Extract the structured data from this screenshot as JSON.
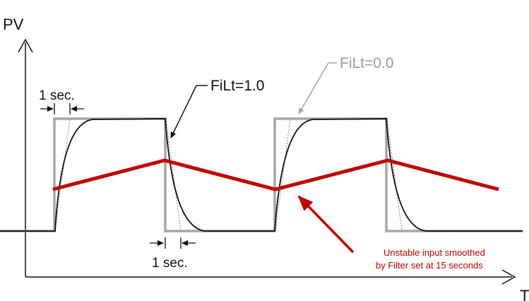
{
  "axes": {
    "y_label": "PV",
    "x_label": "T"
  },
  "labels": {
    "filt_1": "FiLt=1.0",
    "filt_0": "FiLt=0.0",
    "one_sec_top": "1 sec.",
    "one_sec_bottom": "1 sec.",
    "annotation_line1": "Unstable input smoothed",
    "annotation_line2": "by Filter set at 15 seconds"
  },
  "colors": {
    "axis": "#111111",
    "raw_signal": "#a6a6a6",
    "filtered_signal": "#111111",
    "smoothed_signal": "#c00000",
    "annotation_text": "#c00000",
    "filt_0_label": "#9a9a9a"
  }
}
